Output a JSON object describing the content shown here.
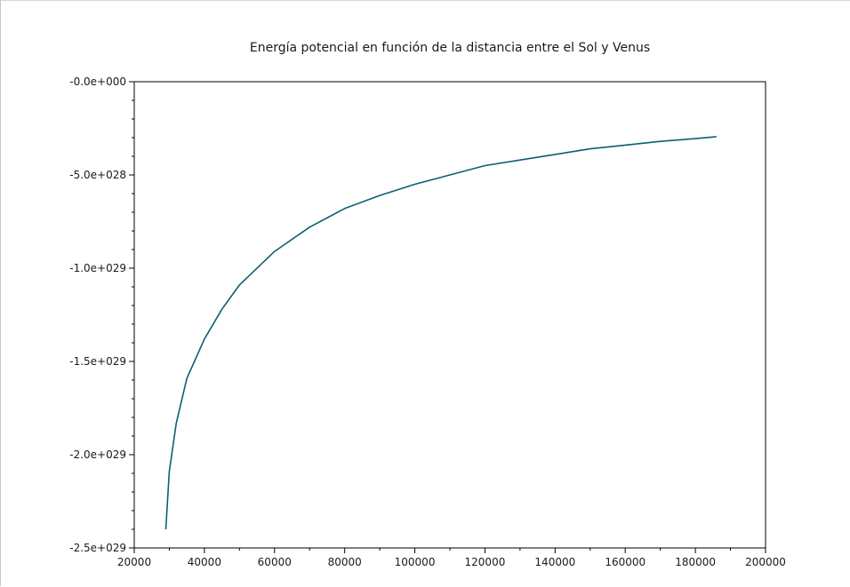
{
  "chart_data": {
    "type": "line",
    "title": "Energía potencial en función de la distancia entre el Sol y Venus",
    "xlabel": "",
    "ylabel": "",
    "xlim": [
      20000,
      200000
    ],
    "ylim": [
      -2.5e+29,
      0
    ],
    "grid": false,
    "x_ticks": [
      20000,
      40000,
      60000,
      80000,
      100000,
      120000,
      140000,
      160000,
      180000,
      200000
    ],
    "x_tick_labels": [
      "20000",
      "40000",
      "60000",
      "80000",
      "100000",
      "120000",
      "140000",
      "160000",
      "180000",
      "200000"
    ],
    "y_ticks": [
      0,
      -5e+28,
      -1e+29,
      -1.5e+29,
      -2e+29,
      -2.5e+29
    ],
    "y_tick_labels": [
      "-0.0e+000",
      "-5.0e+028",
      "-1.0e+029",
      "-1.5e+029",
      "-2.0e+029",
      "-2.5e+029"
    ],
    "series": [
      {
        "color": "#0b5f73",
        "x": [
          29000,
          30000,
          32000,
          35000,
          40000,
          45000,
          50000,
          60000,
          70000,
          80000,
          90000,
          100000,
          110000,
          120000,
          130000,
          140000,
          150000,
          160000,
          170000,
          180000,
          186000
        ],
        "y": [
          -2.4e+29,
          -2.09e+29,
          -1.83e+29,
          -1.59e+29,
          -1.38e+29,
          -1.22e+29,
          -1.09e+29,
          -9.1e+28,
          -7.8e+28,
          -6.8e+28,
          -6.1e+28,
          -5.5e+28,
          -5e+28,
          -4.5e+28,
          -4.2e+28,
          -3.9e+28,
          -3.6e+28,
          -3.4e+28,
          -3.2e+28,
          -3.05e+28,
          -2.95e+28
        ]
      }
    ]
  }
}
